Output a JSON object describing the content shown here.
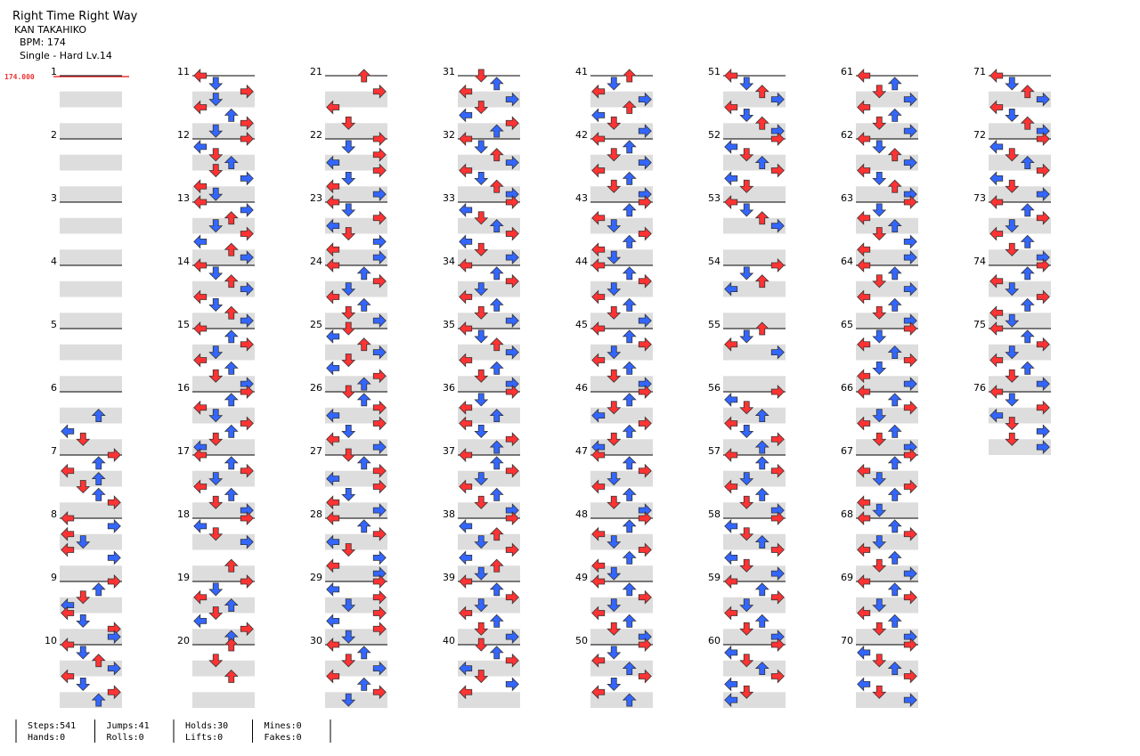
{
  "header": {
    "title": "Right Time Right Way",
    "artist": "KAN TAKAHIKO",
    "bpm": "BPM: 174",
    "difficulty": "Single - Hard  Lv.14",
    "bpm_marker": "174.000"
  },
  "measures": [
    {
      "number": 1,
      "notes": "........"
    },
    {
      "number": 2,
      "notes": "........"
    },
    {
      "number": 3,
      "notes": "........"
    },
    {
      "number": 4,
      "notes": "........"
    },
    {
      "number": 5,
      "notes": "........"
    },
    {
      "number": 6,
      "notes": "...U.LD."
    },
    {
      "number": 7,
      "notes": "RULUDUR."
    },
    {
      "number": 8,
      "notes": "LRLDLR.."
    },
    {
      "number": 9,
      "notes": "RUDLLDRR"
    },
    {
      "number": 10,
      "notes": "LDURLDRU"
    },
    {
      "number": 11,
      "notes": "LDRDLURD"
    },
    {
      "number": 12,
      "notes": "RLDUDRLD"
    },
    {
      "number": 13,
      "notes": "LRUDRLUR"
    },
    {
      "number": 14,
      "notes": "LDURLDUR"
    },
    {
      "number": 15,
      "notes": "LURDLUDR"
    },
    {
      "number": 16,
      "notes": "RULDRUDL"
    },
    {
      "number": 17,
      "notes": "LURDLUDR"
    },
    {
      "number": 18,
      "notes": "RLDR..U."
    },
    {
      "number": 19,
      "notes": "RDLUDLRU"
    },
    {
      "number": 20,
      "notes": "U.D.U..."
    },
    {
      "number": 21,
      "notes": "U.R.L.D."
    },
    {
      "number": 22,
      "notes": "RDRLRDLR"
    },
    {
      "number": 23,
      "notes": "LDRLDRLR"
    },
    {
      "number": 24,
      "notes": "LURDLUDR"
    },
    {
      "number": 25,
      "notes": "DLURDLRU"
    },
    {
      "number": 26,
      "notes": "DURLRDLR"
    },
    {
      "number": 27,
      "notes": "DURLRDLR"
    },
    {
      "number": 28,
      "notes": "LURLDRLR"
    },
    {
      "number": 29,
      "notes": "RLRDRLRD"
    },
    {
      "number": 30,
      "notes": "LUDRLURD"
    },
    {
      "number": 31,
      "notes": "DULRDLRU"
    },
    {
      "number": 32,
      "notes": "LDURLDUR"
    },
    {
      "number": 33,
      "notes": "RLDURLDR"
    },
    {
      "number": 34,
      "notes": "LURDLUDR"
    },
    {
      "number": 35,
      "notes": "LDURLUDR"
    },
    {
      "number": 36,
      "notes": "RDLULDRU"
    },
    {
      "number": 37,
      "notes": "LURDLUDR"
    },
    {
      "number": 38,
      "notes": "RLUDRLUD"
    },
    {
      "number": 39,
      "notes": "LURDLUDR"
    },
    {
      "number": 40,
      "notes": "DURLDRL."
    },
    {
      "number": 41,
      "notes": "UDLRULDR"
    },
    {
      "number": 42,
      "notes": "LUDRLUDR"
    },
    {
      "number": 43,
      "notes": "RULDRULD"
    },
    {
      "number": 44,
      "notes": "LURDLUDR"
    },
    {
      "number": 45,
      "notes": "LURDLUDR"
    },
    {
      "number": 46,
      "notes": "RUDLRUDL"
    },
    {
      "number": 47,
      "notes": "LURDLUDR"
    },
    {
      "number": 48,
      "notes": "RULDRULD"
    },
    {
      "number": 49,
      "notes": "LURDLUDR"
    },
    {
      "number": 50,
      "notes": "RDLURDLU"
    },
    {
      "number": 51,
      "notes": "LDURLDUR"
    },
    {
      "number": 52,
      "notes": "RLDURLD."
    },
    {
      "number": 53,
      "notes": "LDUR...."
    },
    {
      "number": 54,
      "notes": "RDUL...."
    },
    {
      "number": 55,
      "notes": "UDLR...."
    },
    {
      "number": 56,
      "notes": "RLDULDRU"
    },
    {
      "number": 57,
      "notes": "LURDLUDR"
    },
    {
      "number": 58,
      "notes": "RLDURLDR"
    },
    {
      "number": 59,
      "notes": "LURDLUDR"
    },
    {
      "number": 60,
      "notes": "RLDURLDL"
    },
    {
      "number": 61,
      "notes": "LUDRLUDR"
    },
    {
      "number": 62,
      "notes": "LDURLDUR"
    },
    {
      "number": 63,
      "notes": "RDLUDRLR"
    },
    {
      "number": 64,
      "notes": "LUDRLUDR"
    },
    {
      "number": 65,
      "notes": "RDLURDLR"
    },
    {
      "number": 66,
      "notes": "LURDLUDR"
    },
    {
      "number": 67,
      "notes": "RULDRULD"
    },
    {
      "number": 68,
      "notes": "LURDLUDR"
    },
    {
      "number": 69,
      "notes": "LURDLUDR"
    },
    {
      "number": 70,
      "notes": "RLDURLDR"
    },
    {
      "number": 71,
      "notes": "LDURLDUR"
    },
    {
      "number": 72,
      "notes": "RLDURLDR"
    },
    {
      "number": 73,
      "notes": "LURDLUDR"
    },
    {
      "number": 74,
      "notes": "RULDRULD"
    },
    {
      "number": 75,
      "notes": "LURDLUDR"
    },
    {
      "number": 76,
      "notes": "LDRLDRDR"
    }
  ],
  "stats": [
    [
      "Steps:541",
      "Hands:0"
    ],
    [
      "Jumps:41",
      "Rolls:0"
    ],
    [
      "Holds:30",
      "Lifts:0"
    ],
    [
      "Mines:0",
      "Fakes:0"
    ]
  ]
}
